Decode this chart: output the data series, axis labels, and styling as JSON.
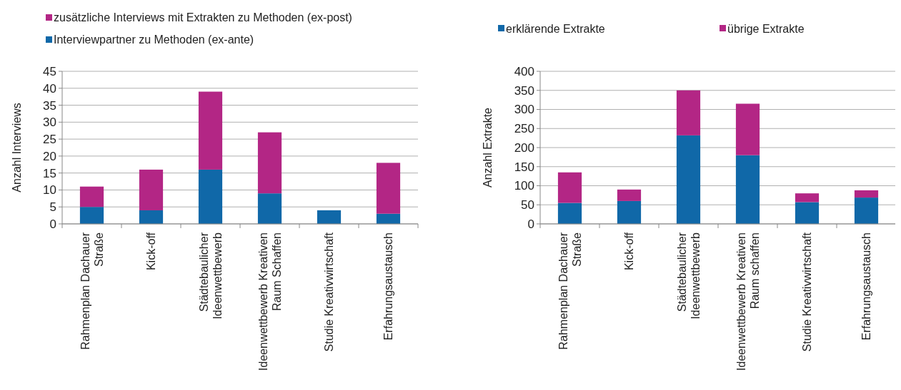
{
  "chart_data": [
    {
      "type": "bar",
      "stacked": true,
      "ylabel": "Anzahl Interviews",
      "categories": [
        "Rahmenplan Dachauer Straße",
        "Kick-off",
        "Städtebaulicher Ideenwettbewerb",
        "Ideenwettbewerb Kreativen Raum Schaffen",
        "Studie Kreativwirtschaft",
        "Erfahrungsaustausch"
      ],
      "series": [
        {
          "name": "Interviewpartner zu Methoden (ex-ante)",
          "color": "#1068a8",
          "values": [
            5,
            4,
            16,
            9,
            4,
            3
          ]
        },
        {
          "name": "zusätzliche Interviews mit Extrakten zu Methoden (ex-post)",
          "color": "#b32685",
          "values": [
            6,
            12,
            23,
            18,
            0,
            15
          ]
        }
      ],
      "ylim": [
        0,
        45
      ],
      "yticks": [
        0,
        5,
        10,
        15,
        20,
        25,
        30,
        35,
        40,
        45
      ],
      "grid": "y",
      "legend": "top left"
    },
    {
      "type": "bar",
      "stacked": true,
      "ylabel": "Anzahl Extrakte",
      "categories": [
        "Rahmenplan Dachauer Straße",
        "Kick-off",
        "Städtebaulicher Ideenwettbewerb",
        "Ideenwettbewerb Kreativen Raum schaffen",
        "Studie Kreativwirtschaft",
        "Erfahrungsaustausch"
      ],
      "series": [
        {
          "name": "erklärende Extrakte",
          "color": "#1068a8",
          "values": [
            55,
            60,
            232,
            180,
            57,
            69
          ]
        },
        {
          "name": "übrige Extrakte",
          "color": "#b32685",
          "values": [
            80,
            30,
            118,
            135,
            23,
            19
          ]
        }
      ],
      "ylim": [
        0,
        400
      ],
      "yticks": [
        0,
        50,
        100,
        150,
        200,
        250,
        300,
        350,
        400
      ],
      "grid": "y",
      "legend": "top"
    }
  ]
}
